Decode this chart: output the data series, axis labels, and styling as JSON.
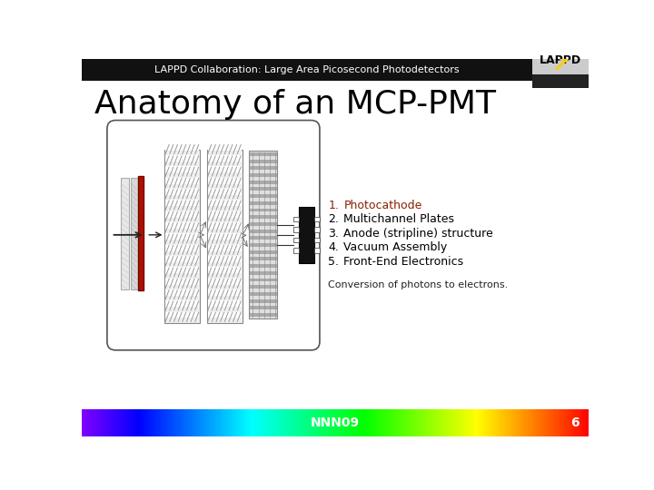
{
  "title": "Anatomy of an MCP-PMT",
  "header_text": "LAPPD Collaboration: Large Area Picosecond Photodetectors",
  "header_bg": "#111111",
  "header_text_color": "#ffffff",
  "slide_bg": "#ffffff",
  "footer_text": "NNN09",
  "footer_page": "6",
  "footer_text_color": "#ffffff",
  "list_items": [
    {
      "num": "1.",
      "text": "Photocathode",
      "color": "#882200"
    },
    {
      "num": "2.",
      "text": "Multichannel Plates",
      "color": "#000000"
    },
    {
      "num": "3.",
      "text": "Anode (stripline) structure",
      "color": "#000000"
    },
    {
      "num": "4.",
      "text": "Vacuum Assembly",
      "color": "#000000"
    },
    {
      "num": "5.",
      "text": "Front-End Electronics",
      "color": "#000000"
    }
  ],
  "conversion_text": "Conversion of photons to electrons.",
  "title_fontsize": 26,
  "header_fontsize": 8,
  "list_fontsize": 9,
  "conversion_fontsize": 8,
  "footer_fontsize": 10
}
